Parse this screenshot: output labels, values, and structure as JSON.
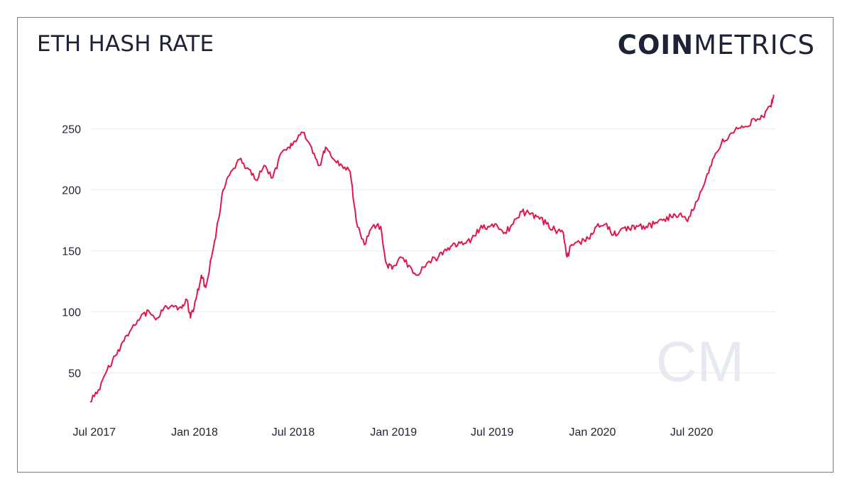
{
  "header": {
    "title": "ETH HASH RATE"
  },
  "brand": {
    "bold": "COIN",
    "light": "METRICS",
    "watermark": "CM"
  },
  "colors": {
    "line": "#e0174a",
    "text": "#1e2235",
    "grid": "#ececec",
    "watermark": "#e6e9f2"
  },
  "chart_data": {
    "type": "line",
    "title": "ETH HASH RATE",
    "xlabel": "",
    "ylabel": "",
    "ylim": [
      20,
      280
    ],
    "xlim": [
      "2017-06-30",
      "2020-12-08"
    ],
    "grid": true,
    "y_ticks": [
      50,
      100,
      150,
      200,
      250
    ],
    "x_ticks": [
      {
        "label": "Jul 2017",
        "date": "2017-07-01"
      },
      {
        "label": "Jan 2018",
        "date": "2018-01-01"
      },
      {
        "label": "Jul 2018",
        "date": "2018-07-01"
      },
      {
        "label": "Jan 2019",
        "date": "2019-01-01"
      },
      {
        "label": "Jul 2019",
        "date": "2019-07-01"
      },
      {
        "label": "Jan 2020",
        "date": "2020-01-01"
      },
      {
        "label": "Jul 2020",
        "date": "2020-07-01"
      }
    ],
    "series": [
      {
        "points": [
          [
            "2017-06-30",
            26
          ],
          [
            "2017-07-15",
            36
          ],
          [
            "2017-07-31",
            52
          ],
          [
            "2017-08-15",
            64
          ],
          [
            "2017-08-31",
            76
          ],
          [
            "2017-09-15",
            87
          ],
          [
            "2017-09-30",
            95
          ],
          [
            "2017-10-15",
            101
          ],
          [
            "2017-10-31",
            95
          ],
          [
            "2017-11-15",
            105
          ],
          [
            "2017-11-30",
            104
          ],
          [
            "2017-12-15",
            103
          ],
          [
            "2017-12-24",
            110
          ],
          [
            "2017-12-31",
            95
          ],
          [
            "2018-01-10",
            110
          ],
          [
            "2018-01-20",
            130
          ],
          [
            "2018-01-28",
            120
          ],
          [
            "2018-02-10",
            150
          ],
          [
            "2018-02-20",
            175
          ],
          [
            "2018-03-01",
            200
          ],
          [
            "2018-03-15",
            215
          ],
          [
            "2018-03-31",
            225
          ],
          [
            "2018-04-15",
            218
          ],
          [
            "2018-04-30",
            208
          ],
          [
            "2018-05-15",
            220
          ],
          [
            "2018-05-31",
            210
          ],
          [
            "2018-06-15",
            230
          ],
          [
            "2018-06-30",
            235
          ],
          [
            "2018-07-10",
            240
          ],
          [
            "2018-07-25",
            247
          ],
          [
            "2018-08-10",
            235
          ],
          [
            "2018-08-25",
            220
          ],
          [
            "2018-09-05",
            235
          ],
          [
            "2018-09-20",
            225
          ],
          [
            "2018-10-05",
            220
          ],
          [
            "2018-10-20",
            215
          ],
          [
            "2018-10-31",
            175
          ],
          [
            "2018-11-15",
            155
          ],
          [
            "2018-11-30",
            170
          ],
          [
            "2018-12-15",
            170
          ],
          [
            "2018-12-25",
            140
          ],
          [
            "2019-01-05",
            135
          ],
          [
            "2019-01-20",
            145
          ],
          [
            "2019-02-05",
            138
          ],
          [
            "2019-02-20",
            130
          ],
          [
            "2019-03-10",
            140
          ],
          [
            "2019-03-31",
            145
          ],
          [
            "2019-04-15",
            150
          ],
          [
            "2019-04-30",
            156
          ],
          [
            "2019-05-15",
            155
          ],
          [
            "2019-05-31",
            160
          ],
          [
            "2019-06-15",
            168
          ],
          [
            "2019-06-30",
            170
          ],
          [
            "2019-07-15",
            172
          ],
          [
            "2019-07-31",
            165
          ],
          [
            "2019-08-15",
            172
          ],
          [
            "2019-08-31",
            182
          ],
          [
            "2019-09-15",
            180
          ],
          [
            "2019-09-30",
            178
          ],
          [
            "2019-10-15",
            172
          ],
          [
            "2019-10-31",
            167
          ],
          [
            "2019-11-15",
            165
          ],
          [
            "2019-11-22",
            145
          ],
          [
            "2019-11-30",
            155
          ],
          [
            "2019-12-15",
            157
          ],
          [
            "2019-12-31",
            160
          ],
          [
            "2020-01-15",
            170
          ],
          [
            "2020-01-31",
            172
          ],
          [
            "2020-02-15",
            163
          ],
          [
            "2020-02-29",
            168
          ],
          [
            "2020-03-15",
            168
          ],
          [
            "2020-03-31",
            170
          ],
          [
            "2020-04-15",
            170
          ],
          [
            "2020-04-30",
            172
          ],
          [
            "2020-05-15",
            175
          ],
          [
            "2020-05-31",
            178
          ],
          [
            "2020-06-15",
            180
          ],
          [
            "2020-06-30",
            174
          ],
          [
            "2020-07-15",
            190
          ],
          [
            "2020-07-31",
            205
          ],
          [
            "2020-08-15",
            225
          ],
          [
            "2020-08-31",
            238
          ],
          [
            "2020-09-15",
            245
          ],
          [
            "2020-09-30",
            250
          ],
          [
            "2020-10-15",
            252
          ],
          [
            "2020-10-31",
            258
          ],
          [
            "2020-11-15",
            260
          ],
          [
            "2020-11-30",
            268
          ],
          [
            "2020-12-05",
            278
          ]
        ]
      }
    ]
  }
}
